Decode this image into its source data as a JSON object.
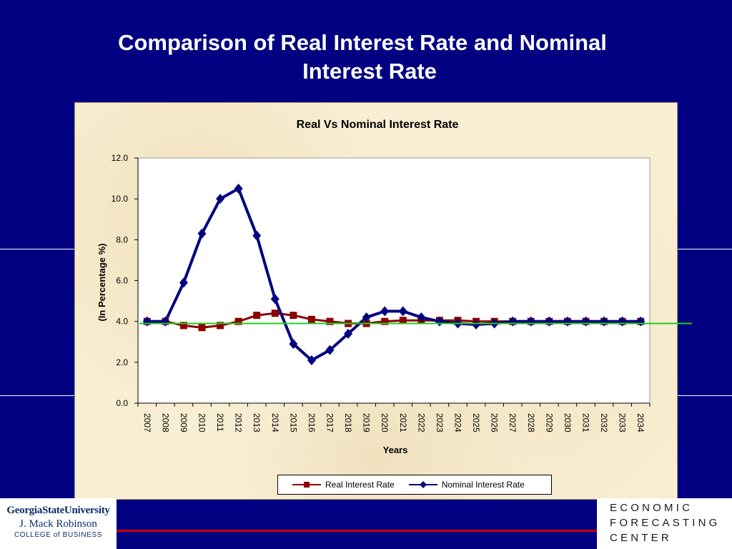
{
  "slide": {
    "title_line1": "Comparison of Real Interest Rate and Nominal",
    "title_line2": "Interest Rate"
  },
  "footer": {
    "left_logo": {
      "line1": "GeorgiaStateUniversity",
      "line2": "J. Mack Robinson",
      "line3": "COLLEGE of BUSINESS"
    },
    "right_logo": {
      "line1": "ECONOMIC",
      "line2": "FORECASTING",
      "line3": "CENTER"
    }
  },
  "colors": {
    "background": "#000080",
    "real_series": "#8B0000",
    "nominal_series": "#000080",
    "reference_line": "#22cc22",
    "footer_rule": "#cc0000"
  },
  "chart_data": {
    "type": "line",
    "title": "Real Vs Nominal Interest Rate",
    "xlabel": "Years",
    "ylabel": "(In Percentage  %)",
    "categories": [
      "2007",
      "2008",
      "2009",
      "2010",
      "2011",
      "2012",
      "2013",
      "2014",
      "2015",
      "2016",
      "2017",
      "2018",
      "2019",
      "2020",
      "2021",
      "2022",
      "2023",
      "2024",
      "2025",
      "2026",
      "2027",
      "2028",
      "2029",
      "2030",
      "2031",
      "2032",
      "2033",
      "2034"
    ],
    "ylim": [
      0,
      12
    ],
    "yticks": [
      "0.0",
      "2.0",
      "4.0",
      "6.0",
      "8.0",
      "10.0",
      "12.0"
    ],
    "grid": false,
    "legend_position": "bottom",
    "series": [
      {
        "name": "Real Interest Rate",
        "marker": "square",
        "values": [
          4.0,
          4.0,
          3.8,
          3.7,
          3.8,
          4.0,
          4.3,
          4.4,
          4.3,
          4.1,
          4.0,
          3.9,
          3.9,
          4.0,
          4.05,
          4.05,
          4.05,
          4.05,
          4.0,
          4.0,
          4.0,
          4.0,
          4.0,
          4.0,
          4.0,
          4.0,
          4.0,
          4.0
        ]
      },
      {
        "name": "Nominal Interest Rate",
        "marker": "diamond",
        "values": [
          4.0,
          4.0,
          5.9,
          8.3,
          10.0,
          10.5,
          8.2,
          5.1,
          2.9,
          2.1,
          2.6,
          3.4,
          4.2,
          4.5,
          4.5,
          4.2,
          4.0,
          3.9,
          3.85,
          3.9,
          4.0,
          4.0,
          4.0,
          4.0,
          4.0,
          4.0,
          4.0,
          4.0
        ]
      }
    ],
    "reference_line": {
      "value": 3.9
    }
  }
}
